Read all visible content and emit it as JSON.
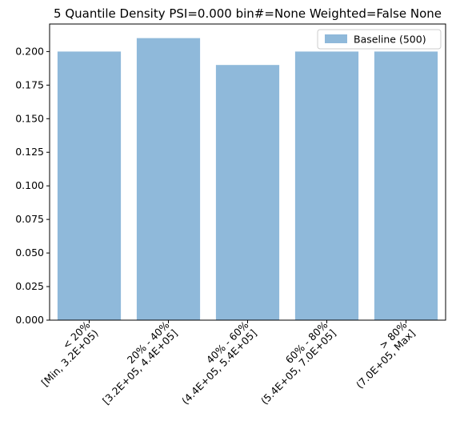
{
  "chart_data": {
    "type": "bar",
    "title": "5 Quantile Density PSI=0.000 bin#=None Weighted=False None",
    "xlabel": "",
    "ylabel": "",
    "categories": [
      [
        "< 20%",
        "[Min, 3.2E+05)"
      ],
      [
        "20% - 40%",
        "[3.2E+05, 4.4E+05]"
      ],
      [
        "40% - 60%",
        "(4.4E+05, 5.4E+05]"
      ],
      [
        "60% - 80%",
        "(5.4E+05, 7.0E+05]"
      ],
      [
        "> 80%",
        "(7.0E+05, Max]"
      ]
    ],
    "series": [
      {
        "name": "Baseline (500)",
        "values": [
          0.2,
          0.21,
          0.19,
          0.2,
          0.2
        ],
        "color": "#8fb9da"
      }
    ],
    "ylim": [
      0,
      0.2205
    ],
    "yticks": [
      0.0,
      0.025,
      0.05,
      0.075,
      0.1,
      0.125,
      0.15,
      0.175,
      0.2
    ],
    "ytick_labels": [
      "0.000",
      "0.025",
      "0.050",
      "0.075",
      "0.100",
      "0.125",
      "0.150",
      "0.175",
      "0.200"
    ],
    "grid": false,
    "legend_position": "top-right"
  }
}
